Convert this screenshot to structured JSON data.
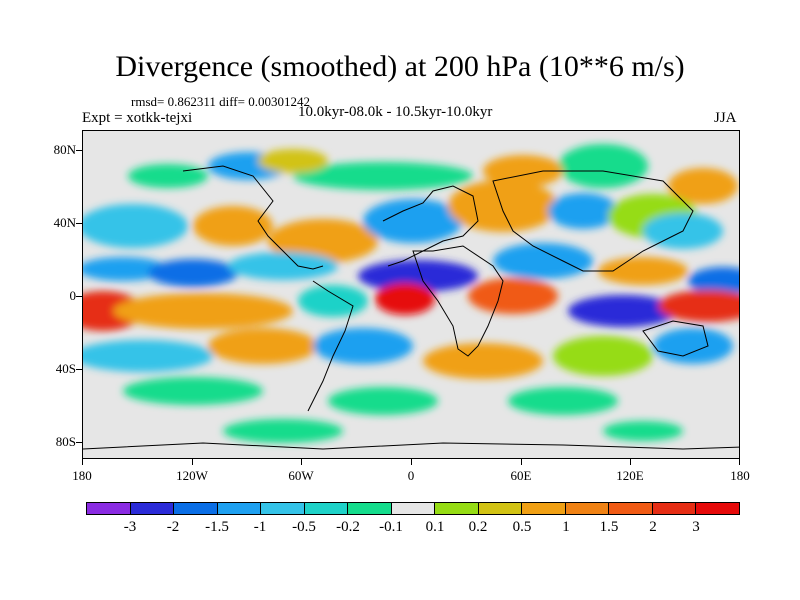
{
  "title": "Divergence (smoothed) at 200 hPa (10**6 m/s)",
  "stats": "rmsd= 0.862311 diff= 0.00301242",
  "experiment": "Expt = xotkk-tejxi",
  "period": "10.0kyr-08.0k - 10.5kyr-10.0kyr",
  "season": "JJA",
  "axes": {
    "lat_labels": [
      "80N",
      "40N",
      "0",
      "40S",
      "80S"
    ],
    "lon_labels": [
      "180",
      "120W",
      "60W",
      "0",
      "60E",
      "120E",
      "180"
    ]
  },
  "colorbar": {
    "colors": [
      "#8a2be2",
      "#2b2bd8",
      "#0a6ee6",
      "#1ea0f0",
      "#34c3e8",
      "#1ed2c8",
      "#14dc8c",
      "#e6e6e6",
      "#96dc14",
      "#d2c314",
      "#f0a014",
      "#f08214",
      "#f05a14",
      "#e62d14",
      "#e60a0a"
    ],
    "labels": [
      "-3",
      "-2",
      "-1.5",
      "-1",
      "-0.5",
      "-0.2",
      "-0.1",
      "0.1",
      "0.2",
      "0.5",
      "1",
      "1.5",
      "2",
      "3"
    ]
  }
}
